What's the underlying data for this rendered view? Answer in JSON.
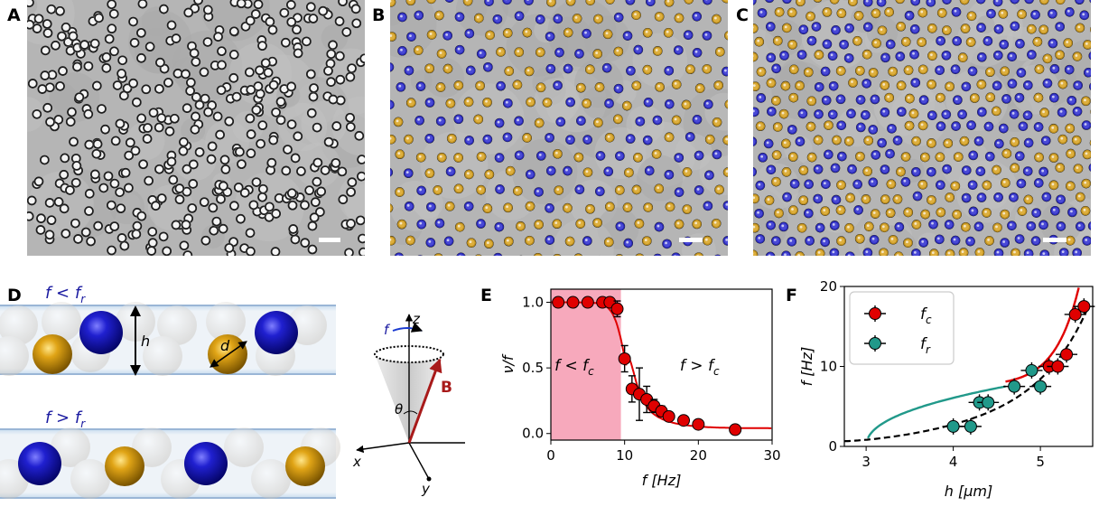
{
  "panels": {
    "a": {
      "label": "A"
    },
    "b": {
      "label": "B"
    },
    "c": {
      "label": "C"
    },
    "d": {
      "label": "D",
      "top_condition": "f < f",
      "top_sub": "r",
      "bottom_condition": "f > f",
      "bottom_sub": "r",
      "height_symbol": "h",
      "diameter_symbol": "d"
    },
    "axes3d": {
      "field_label": "B",
      "rotation_label": "f",
      "angle_label": "θ",
      "x": "x",
      "y": "y",
      "z": "z"
    },
    "e": {
      "label": "E"
    },
    "f": {
      "label": "F"
    }
  },
  "colors": {
    "gold": "#d9a21c",
    "blue": "#2a2ad0",
    "red": "#e00000",
    "teal": "#21998a",
    "pink": "#f7a9bc",
    "dark_red": "#a81a1a"
  },
  "chart_data": [
    {
      "type": "scatter",
      "panel": "E",
      "xlabel": "f [Hz]",
      "ylabel": "ν/f",
      "xlim": [
        0,
        30
      ],
      "ylim": [
        -0.05,
        1.1
      ],
      "xticks": [
        "0",
        "10",
        "20",
        "30"
      ],
      "yticks": [
        "0.0",
        "0.5",
        "1.0"
      ],
      "annotations": {
        "left_region": "f < f",
        "left_sub": "c",
        "right_region": "f > f",
        "right_sub": "c"
      },
      "shaded_region_x": [
        0,
        9.5
      ],
      "points": [
        {
          "x": 1,
          "y": 1.0,
          "err": 0.02
        },
        {
          "x": 3,
          "y": 1.0,
          "err": 0.02
        },
        {
          "x": 5,
          "y": 1.0,
          "err": 0.02
        },
        {
          "x": 7,
          "y": 1.0,
          "err": 0.02
        },
        {
          "x": 8,
          "y": 1.0,
          "err": 0.03
        },
        {
          "x": 9,
          "y": 0.95,
          "err": 0.06
        },
        {
          "x": 10,
          "y": 0.57,
          "err": 0.1
        },
        {
          "x": 11,
          "y": 0.34,
          "err": 0.1
        },
        {
          "x": 12,
          "y": 0.3,
          "err": 0.2
        },
        {
          "x": 13,
          "y": 0.26,
          "err": 0.1
        },
        {
          "x": 14,
          "y": 0.21,
          "err": 0.05
        },
        {
          "x": 15,
          "y": 0.17,
          "err": 0.04
        },
        {
          "x": 16,
          "y": 0.13,
          "err": 0.03
        },
        {
          "x": 18,
          "y": 0.1,
          "err": 0.03
        },
        {
          "x": 20,
          "y": 0.07,
          "err": 0.02
        },
        {
          "x": 25,
          "y": 0.03,
          "err": 0.01
        }
      ],
      "fit": {
        "color": "#e00000"
      }
    },
    {
      "type": "scatter",
      "panel": "F",
      "xlabel": "h [μm]",
      "ylabel": "f [Hz]",
      "xlim": [
        2.75,
        5.6
      ],
      "ylim": [
        0,
        20
      ],
      "xticks": [
        "3",
        "4",
        "5"
      ],
      "yticks": [
        "0",
        "10",
        "20"
      ],
      "series": [
        {
          "name": "f",
          "sub": "c",
          "color": "#e00000",
          "points": [
            {
              "x": 5.1,
              "y": 10.0
            },
            {
              "x": 5.2,
              "y": 10.0
            },
            {
              "x": 5.3,
              "y": 11.5
            },
            {
              "x": 5.4,
              "y": 16.5
            },
            {
              "x": 5.5,
              "y": 17.5
            }
          ]
        },
        {
          "name": "f",
          "sub": "r",
          "color": "#21998a",
          "points": [
            {
              "x": 4.0,
              "y": 2.5
            },
            {
              "x": 4.2,
              "y": 2.5
            },
            {
              "x": 4.3,
              "y": 5.5
            },
            {
              "x": 4.4,
              "y": 5.5
            },
            {
              "x": 4.7,
              "y": 7.5
            },
            {
              "x": 4.9,
              "y": 9.5
            },
            {
              "x": 5.0,
              "y": 7.5
            }
          ]
        }
      ]
    }
  ]
}
